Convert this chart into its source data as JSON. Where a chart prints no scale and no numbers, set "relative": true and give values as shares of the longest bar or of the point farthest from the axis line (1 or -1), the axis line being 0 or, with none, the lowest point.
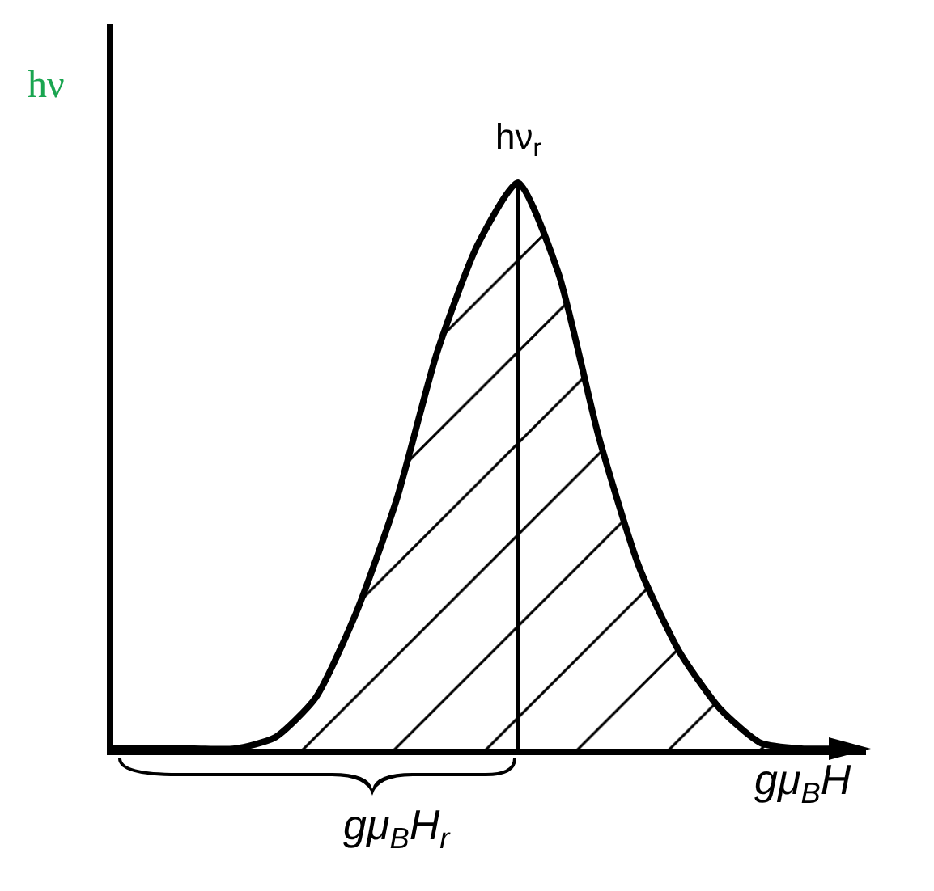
{
  "chart_data": {
    "type": "area",
    "relative": true,
    "color": "#000000",
    "categories": [
      null,
      null,
      null,
      null,
      null,
      null,
      null,
      null,
      null,
      null,
      null,
      null,
      null,
      null,
      null,
      null,
      null,
      null,
      null
    ],
    "values": [
      0,
      0,
      0,
      0,
      0.02,
      0.09,
      0.24,
      0.44,
      0.7,
      0.89,
      1,
      0.84,
      0.55,
      0.32,
      0.17,
      0.07,
      0.01,
      0,
      0
    ],
    "ylabel": "hν",
    "xlabel": "gμ$_{B}$H",
    "annotations": [
      "hν$_{r}$",
      "gμ$_{B}$H$_{r}$"
    ]
  }
}
